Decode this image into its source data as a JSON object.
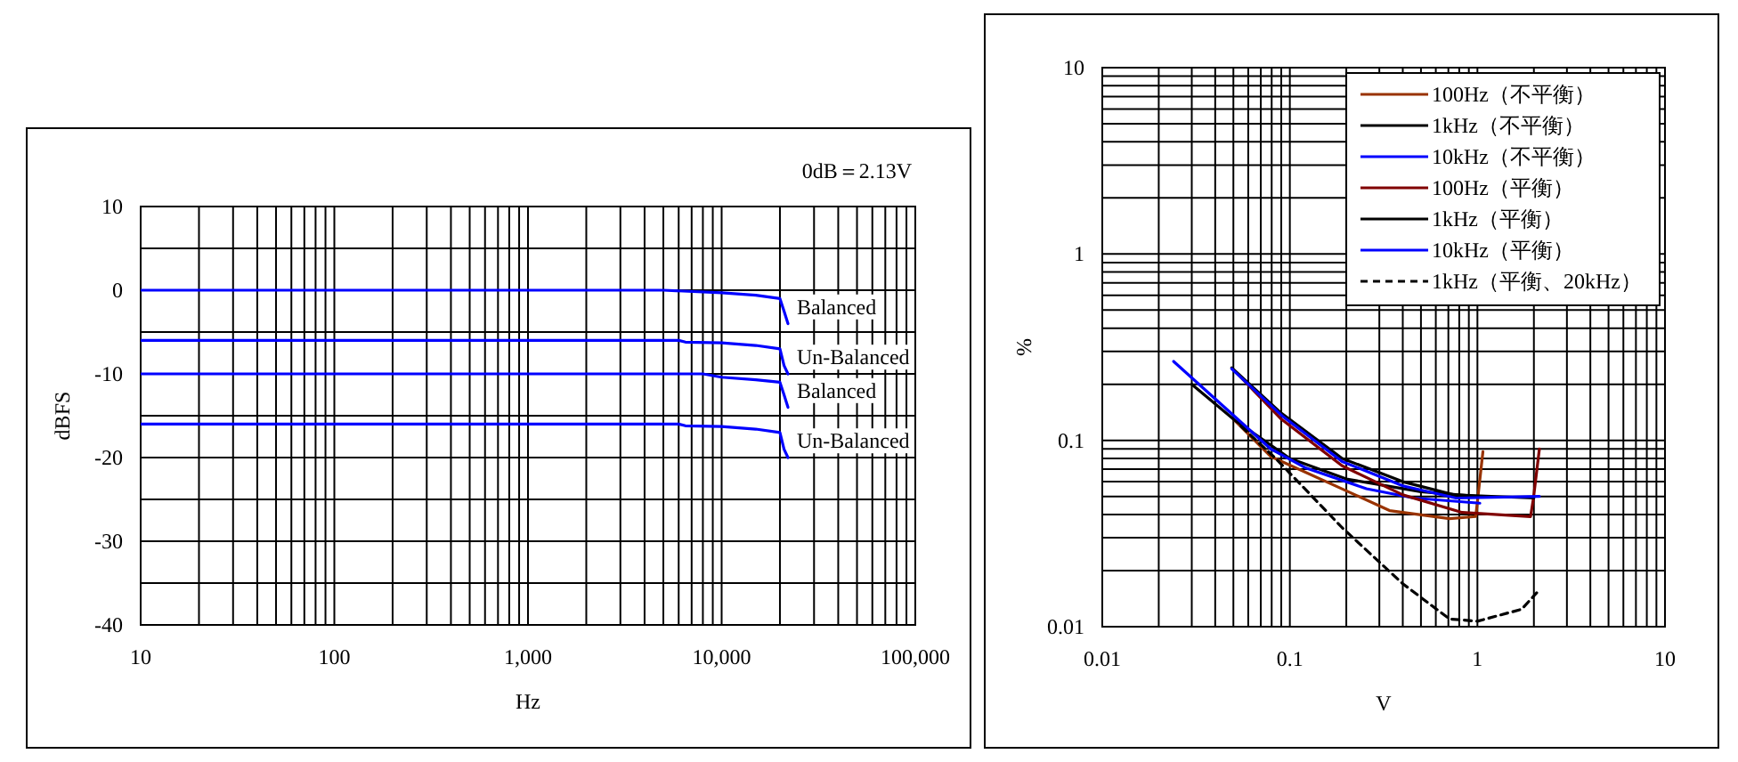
{
  "chart_data": [
    {
      "type": "line",
      "xlabel": "Hz",
      "ylabel": "dBFS",
      "annotations": [
        "0dB＝2.13V"
      ],
      "log": "x",
      "grid": true,
      "legend": false,
      "xlim": [
        10,
        100000
      ],
      "xticks": [
        10,
        100,
        {
          "value": 1000,
          "label": "1,000"
        },
        {
          "value": 10000,
          "label": "10,000"
        },
        {
          "value": 100000,
          "label": "100,000"
        }
      ],
      "ylim": [
        -40,
        10
      ],
      "yticks": [
        -40,
        {
          "value": -35,
          "label": null
        },
        -30,
        {
          "value": -25,
          "label": null
        },
        -20,
        {
          "value": -15,
          "label": null
        },
        -10,
        {
          "value": -5,
          "label": null
        },
        0,
        {
          "value": 5,
          "label": null
        },
        10
      ],
      "series": [
        {
          "name": "Balanced",
          "color": "#0000ff",
          "x": [
            10,
            100,
            1000,
            5000,
            10000,
            15000,
            20000,
            21000,
            22000
          ],
          "values": [
            0,
            0,
            0,
            0,
            -0.3,
            -0.6,
            -1,
            -2.5,
            -4
          ]
        },
        {
          "name": "Un-Balanced",
          "color": "#0000ff",
          "x": [
            10,
            100,
            1000,
            6000,
            6500,
            10000,
            15000,
            20000,
            21000,
            22000
          ],
          "values": [
            -6,
            -6,
            -6,
            -6,
            -6.2,
            -6.3,
            -6.6,
            -7,
            -9,
            -10
          ]
        },
        {
          "name": "Balanced",
          "color": "#0000ff",
          "x": [
            10,
            100,
            1000,
            8000,
            10000,
            15000,
            20000,
            21000,
            22000
          ],
          "values": [
            -10,
            -10,
            -10,
            -10,
            -10.4,
            -10.7,
            -11,
            -12.5,
            -14
          ]
        },
        {
          "name": "Un-Balanced",
          "color": "#0000ff",
          "x": [
            10,
            100,
            1000,
            6000,
            6500,
            10000,
            15000,
            20000,
            21000,
            22000
          ],
          "values": [
            -16,
            -16,
            -16,
            -16,
            -16.2,
            -16.3,
            -16.6,
            -17,
            -19,
            -20
          ]
        }
      ]
    },
    {
      "type": "line",
      "xlabel": "V",
      "ylabel": "%",
      "log": "xy",
      "grid": true,
      "legend": "top right",
      "xlim": [
        0.01,
        10
      ],
      "xticks": [
        0.01,
        0.1,
        1,
        10
      ],
      "ylim": [
        0.01,
        10
      ],
      "yticks": [
        0.01,
        0.1,
        1,
        10
      ],
      "series": [
        {
          "name": "100Hz（不平衡）",
          "color": "#993300",
          "x": [
            0.05,
            0.079,
            0.205,
            0.34,
            0.71,
            0.98,
            1.07
          ],
          "values": [
            0.13,
            0.082,
            0.053,
            0.042,
            0.038,
            0.039,
            0.087
          ]
        },
        {
          "name": "1kHz（不平衡）",
          "color": "#000000",
          "x": [
            0.03,
            0.05,
            0.1,
            0.2,
            0.5,
            1
          ],
          "values": [
            0.2,
            0.13,
            0.08,
            0.062,
            0.053,
            0.05
          ]
        },
        {
          "name": "10kHz（不平衡）",
          "color": "#0000ff",
          "x": [
            0.024,
            0.079,
            0.122,
            0.256,
            0.46,
            1.03
          ],
          "values": [
            0.265,
            0.09,
            0.071,
            0.055,
            0.049,
            0.046
          ]
        },
        {
          "name": "100Hz（平衡）",
          "color": "#800000",
          "x": [
            0.05,
            0.09,
            0.19,
            0.4,
            0.83,
            1.92,
            1.99,
            2.14
          ],
          "values": [
            0.24,
            0.13,
            0.073,
            0.051,
            0.041,
            0.039,
            0.049,
            0.09
          ]
        },
        {
          "name": "1kHz（平衡）",
          "color": "#000000",
          "x": [
            0.049,
            0.09,
            0.19,
            0.4,
            0.75,
            2
          ],
          "values": [
            0.245,
            0.14,
            0.08,
            0.06,
            0.051,
            0.049
          ]
        },
        {
          "name": "10kHz（平衡）",
          "color": "#0000ff",
          "x": [
            0.049,
            0.092,
            0.19,
            0.4,
            0.77,
            2.14
          ],
          "values": [
            0.242,
            0.134,
            0.077,
            0.057,
            0.049,
            0.05
          ]
        },
        {
          "name": "1kHz（平衡、20kHz）",
          "color": "#000000",
          "line_style": "dashed",
          "x": [
            0.055,
            0.085,
            0.19,
            0.4,
            0.71,
            1,
            1.72,
            2.07
          ],
          "values": [
            0.119,
            0.079,
            0.034,
            0.017,
            0.011,
            0.0107,
            0.0124,
            0.0152
          ]
        }
      ]
    }
  ]
}
